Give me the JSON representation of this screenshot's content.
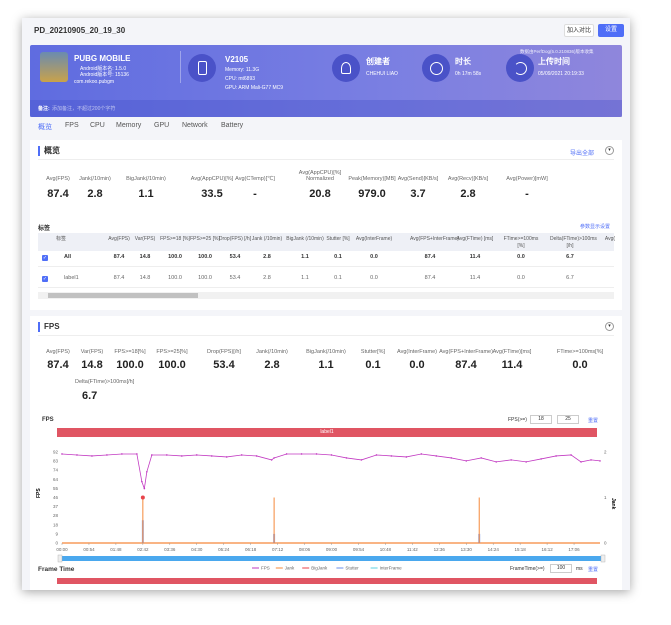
{
  "window": {
    "title": "PD_20210905_20_19_30",
    "compare_button": "加入对比",
    "settings_button": "设置"
  },
  "banner": {
    "app_name": "PUBG MOBILE",
    "android_version_name": "Android版本名: 1.5.0",
    "android_version_code": "Android版本号: 15136",
    "package": "com.rekoo.pubgm",
    "device": "V2105",
    "memory": "Memory: 11.3G",
    "cpu": "CPU: mt6893",
    "gpu": "GPU: ARM Mali-G77 MC9",
    "creator_label": "创建者",
    "creator": "CHEHUI LIAO",
    "duration_label": "时长",
    "duration": "0h 17m 58s",
    "upload_label": "上传时间",
    "upload_time": "05/09/2021 20:19:33",
    "perfdog_note": "数据由PerfDog(5.0.210836)版本收集",
    "remark_label": "备注:",
    "remark_placeholder": "添加备注，不超过200个字符",
    "accent": "#5f6ce0"
  },
  "tabs": [
    "概览",
    "FPS",
    "CPU",
    "Memory",
    "GPU",
    "Network",
    "Battery"
  ],
  "overview": {
    "title": "概览",
    "export": "导出全部",
    "metrics": [
      {
        "label": "Avg(FPS)",
        "value": "87.4"
      },
      {
        "label": "Jank(/10min)",
        "value": "2.8"
      },
      {
        "label": "BigJank(/10min)",
        "value": "1.1"
      },
      {
        "label": "Avg(AppCPU)[%]",
        "value": "33.5"
      },
      {
        "label": "Avg(CTemp)[℃]",
        "value": "-"
      },
      {
        "label": "Avg(AppCPU)[%] Normalized",
        "value": "20.8"
      },
      {
        "label": "Peak(Memory)[MB]",
        "value": "979.0"
      },
      {
        "label": "Avg(Send)[KB/s]",
        "value": "3.7"
      },
      {
        "label": "Avg(Recv)[KB/s]",
        "value": "2.8"
      },
      {
        "label": "Avg(Power)[mW]",
        "value": "-"
      }
    ],
    "labels_title": "标签",
    "param_settings": "参数显示设置",
    "columns": [
      "标签",
      "Avg(FPS)",
      "Var(FPS)",
      "FPS>=18 [%]",
      "FPS>=25 [%]",
      "Drop(FPS) [/h]",
      "Jank (/10min)",
      "BigJank (/10min)",
      "Stutter [%]",
      "Avg(InterFrame)",
      "Avg(FPS+InterFrame)",
      "Avg(FTime) [ms]",
      "FTime>=100ms [%]",
      "Delta(FTime)>100ms [/h]",
      "Avg("
    ],
    "rows": [
      [
        "All",
        "87.4",
        "14.8",
        "100.0",
        "100.0",
        "53.4",
        "2.8",
        "1.1",
        "0.1",
        "0.0",
        "87.4",
        "11.4",
        "0.0",
        "6.7",
        ""
      ],
      [
        "label1",
        "87.4",
        "14.8",
        "100.0",
        "100.0",
        "53.4",
        "2.8",
        "1.1",
        "0.1",
        "0.0",
        "87.4",
        "11.4",
        "0.0",
        "6.7",
        ""
      ]
    ]
  },
  "fps": {
    "title": "FPS",
    "metrics": [
      {
        "label": "Avg(FPS)",
        "value": "87.4"
      },
      {
        "label": "Var(FPS)",
        "value": "14.8"
      },
      {
        "label": "FPS>=18[%]",
        "value": "100.0"
      },
      {
        "label": "FPS>=25[%]",
        "value": "100.0"
      },
      {
        "label": "Drop(FPS)[/h]",
        "value": "53.4"
      },
      {
        "label": "Jank(/10min)",
        "value": "2.8"
      },
      {
        "label": "BigJank(/10min)",
        "value": "1.1"
      },
      {
        "label": "Stutter[%]",
        "value": "0.1"
      },
      {
        "label": "Avg(InterFrame)",
        "value": "0.0"
      },
      {
        "label": "Avg(FPS+InterFrame)",
        "value": "87.4"
      },
      {
        "label": "Avg(FTime)[ms]",
        "value": "11.4"
      },
      {
        "label": "FTime>=100ms[%]",
        "value": "0.0"
      },
      {
        "label": "Delta(FTime)>100ms[/h]",
        "value": "6.7"
      }
    ],
    "chart_title": "FPS",
    "threshold_label": "FPS(>=)",
    "threshold1": "18",
    "threshold2": "25",
    "reset": "重置",
    "label_bar": "label1",
    "label_bar_color": "#e05563",
    "frame_time_title": "Frame Time",
    "frame_time_label": "FrameTime(>=)",
    "frame_time_value": "100",
    "frame_time_unit": "ms",
    "frame_time_reset": "重置"
  },
  "chart_data": {
    "type": "line",
    "ylabel": "FPS",
    "y2label": "Jank",
    "ylim": [
      0,
      92
    ],
    "y2lim": [
      0,
      2
    ],
    "yticks": [
      "92",
      "83",
      "74",
      "64",
      "55",
      "46",
      "37",
      "28",
      "18",
      "9",
      "0"
    ],
    "y2ticks": [
      "2",
      "1",
      "0"
    ],
    "xticks": [
      "00:00",
      "00:54",
      "01:48",
      "02:42",
      "03:36",
      "04:30",
      "05:24",
      "06:18",
      "07:12",
      "08:06",
      "09:00",
      "09:54",
      "10:48",
      "11:42",
      "12:36",
      "13:30",
      "14:24",
      "15:18",
      "16:12",
      "17:06"
    ],
    "legend": [
      "FPS",
      "Jank",
      "BigJank",
      "Stutter",
      "InterFrame"
    ],
    "colors": {
      "FPS": "#c23ac2",
      "Jank": "#f5883a",
      "BigJank": "#e8434b",
      "Stutter": "#6b8fe8",
      "InterFrame": "#5ed0e0"
    },
    "x_seconds_max": 1078,
    "fps": [
      [
        0,
        90
      ],
      [
        30,
        89
      ],
      [
        60,
        88
      ],
      [
        90,
        89
      ],
      [
        120,
        90
      ],
      [
        150,
        90
      ],
      [
        160,
        62
      ],
      [
        165,
        55
      ],
      [
        170,
        72
      ],
      [
        180,
        89
      ],
      [
        210,
        89
      ],
      [
        240,
        88
      ],
      [
        270,
        89
      ],
      [
        300,
        88
      ],
      [
        330,
        87
      ],
      [
        360,
        89
      ],
      [
        390,
        88
      ],
      [
        420,
        84
      ],
      [
        425,
        86
      ],
      [
        450,
        90
      ],
      [
        480,
        90
      ],
      [
        510,
        90
      ],
      [
        540,
        89
      ],
      [
        570,
        86
      ],
      [
        600,
        84
      ],
      [
        630,
        89
      ],
      [
        660,
        88
      ],
      [
        690,
        87
      ],
      [
        720,
        90
      ],
      [
        750,
        88
      ],
      [
        780,
        86
      ],
      [
        810,
        83
      ],
      [
        840,
        86
      ],
      [
        870,
        82
      ],
      [
        900,
        84
      ],
      [
        930,
        82
      ],
      [
        960,
        85
      ],
      [
        990,
        88
      ],
      [
        1020,
        89
      ],
      [
        1040,
        82
      ],
      [
        1060,
        84
      ],
      [
        1078,
        83
      ]
    ],
    "jank": [
      [
        162,
        1
      ],
      [
        425,
        1
      ],
      [
        836,
        1
      ]
    ],
    "bigjank": [
      [
        162,
        1
      ]
    ],
    "stutter": [
      [
        162,
        0.5
      ],
      [
        425,
        0.2
      ],
      [
        836,
        0.2
      ]
    ]
  }
}
